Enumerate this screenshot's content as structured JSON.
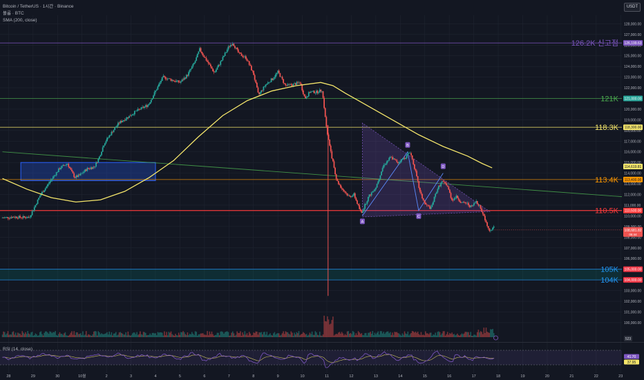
{
  "legend": {
    "pair": "Bitcoin / TetherUS · 1시간 · Binance",
    "volume": "볼륨 · BTC",
    "sma": "SMA (200, close)"
  },
  "currency_button": "USDT",
  "rsi_title": "RSI (14, close)",
  "colors": {
    "background": "#131722",
    "candle_up": "#26a69a",
    "candle_down": "#ef5350",
    "sma": "#f5e66b",
    "trend": "#4caf50",
    "pattern": "#7e57c2"
  },
  "chart_data": {
    "type": "candlestick",
    "title": "",
    "y_axis": {
      "range": [
        99800,
        128800
      ],
      "ticks": [
        "128,000.00",
        "127,000.00",
        "126,000.00",
        "125,000.00",
        "124,000.00",
        "123,000.00",
        "122,000.00",
        "121,000.00",
        "120,000.00",
        "119,000.00",
        "118,000.00",
        "117,000.00",
        "116,000.00",
        "115,000.00",
        "114,000.00",
        "113,000.00",
        "112,000.00",
        "111,000.00",
        "110,000.00",
        "109,000.00",
        "108,000.00",
        "107,000.00",
        "106,000.00",
        "105,000.00",
        "104,000.00",
        "103,000.00",
        "102,000.00",
        "101,000.00",
        "100,000.00"
      ],
      "tick_values": [
        128000,
        127000,
        126000,
        125000,
        124000,
        123000,
        122000,
        121000,
        120000,
        119000,
        118000,
        117000,
        116000,
        115000,
        114000,
        113000,
        112000,
        111000,
        110000,
        109000,
        108000,
        107000,
        106000,
        105000,
        104000,
        103000,
        102000,
        101000,
        100000
      ]
    },
    "x_axis": {
      "range": [
        -0.1,
        25.3
      ],
      "ticks": [
        {
          "label": "28",
          "pos": 0.25
        },
        {
          "label": "29",
          "pos": 1.25
        },
        {
          "label": "30",
          "pos": 2.25
        },
        {
          "label": "10월",
          "pos": 3.25
        },
        {
          "label": "2",
          "pos": 4.25
        },
        {
          "label": "3",
          "pos": 5.25
        },
        {
          "label": "4",
          "pos": 6.25
        },
        {
          "label": "5",
          "pos": 7.25
        },
        {
          "label": "6",
          "pos": 8.25
        },
        {
          "label": "7",
          "pos": 9.25
        },
        {
          "label": "8",
          "pos": 10.25
        },
        {
          "label": "9",
          "pos": 11.25
        },
        {
          "label": "10",
          "pos": 12.25
        },
        {
          "label": "11",
          "pos": 13.25
        },
        {
          "label": "12",
          "pos": 14.25
        },
        {
          "label": "13",
          "pos": 15.25
        },
        {
          "label": "14",
          "pos": 16.25
        },
        {
          "label": "15",
          "pos": 17.25
        },
        {
          "label": "16",
          "pos": 18.25
        },
        {
          "label": "17",
          "pos": 19.25
        },
        {
          "label": "18",
          "pos": 20.25
        },
        {
          "label": "19",
          "pos": 21.25
        },
        {
          "label": "20",
          "pos": 22.25
        },
        {
          "label": "21",
          "pos": 23.25
        },
        {
          "label": "22",
          "pos": 24.25
        },
        {
          "label": "23",
          "pos": 25.25
        }
      ]
    },
    "price_path": [
      [
        0.0,
        109800
      ],
      [
        0.5,
        109900
      ],
      [
        1.0,
        109850
      ],
      [
        1.15,
        109900
      ],
      [
        1.35,
        110800
      ],
      [
        1.6,
        112000
      ],
      [
        1.8,
        112600
      ],
      [
        2.1,
        113600
      ],
      [
        2.4,
        114500
      ],
      [
        2.7,
        114900
      ],
      [
        2.85,
        114200
      ],
      [
        3.0,
        113600
      ],
      [
        3.2,
        113800
      ],
      [
        3.5,
        114400
      ],
      [
        3.8,
        114600
      ],
      [
        4.0,
        115500
      ],
      [
        4.2,
        116800
      ],
      [
        4.5,
        117800
      ],
      [
        4.8,
        118700
      ],
      [
        5.2,
        119300
      ],
      [
        5.5,
        119800
      ],
      [
        6.0,
        120400
      ],
      [
        6.3,
        121700
      ],
      [
        6.6,
        123000
      ],
      [
        7.0,
        122700
      ],
      [
        7.3,
        122500
      ],
      [
        7.6,
        123200
      ],
      [
        7.9,
        124400
      ],
      [
        8.1,
        125600
      ],
      [
        8.4,
        124500
      ],
      [
        8.7,
        123400
      ],
      [
        9.0,
        124600
      ],
      [
        9.3,
        125900
      ],
      [
        9.45,
        126200
      ],
      [
        9.7,
        125200
      ],
      [
        10.0,
        124800
      ],
      [
        10.3,
        123300
      ],
      [
        10.5,
        121300
      ],
      [
        10.8,
        122300
      ],
      [
        11.1,
        122900
      ],
      [
        11.3,
        123500
      ],
      [
        11.6,
        122200
      ],
      [
        11.9,
        122300
      ],
      [
        12.2,
        122500
      ],
      [
        12.4,
        121000
      ],
      [
        12.6,
        121600
      ],
      [
        12.9,
        121600
      ],
      [
        13.1,
        121800
      ],
      [
        13.3,
        118000
      ],
      [
        13.5,
        115500
      ],
      [
        13.7,
        113300
      ],
      [
        13.9,
        112600
      ],
      [
        14.2,
        111800
      ],
      [
        14.4,
        112000
      ],
      [
        14.7,
        110200
      ],
      [
        15.0,
        111800
      ],
      [
        15.3,
        112700
      ],
      [
        15.6,
        114700
      ],
      [
        15.9,
        115500
      ],
      [
        16.2,
        115000
      ],
      [
        16.5,
        115500
      ],
      [
        16.7,
        116000
      ],
      [
        16.9,
        114300
      ],
      [
        17.1,
        112200
      ],
      [
        17.3,
        111100
      ],
      [
        17.55,
        110700
      ],
      [
        17.8,
        112500
      ],
      [
        18.0,
        113200
      ],
      [
        18.2,
        112900
      ],
      [
        18.4,
        111500
      ],
      [
        18.6,
        111800
      ],
      [
        18.8,
        111200
      ],
      [
        19.0,
        111200
      ],
      [
        19.2,
        110800
      ],
      [
        19.4,
        111400
      ],
      [
        19.6,
        110600
      ],
      [
        19.75,
        109700
      ],
      [
        19.95,
        108600
      ],
      [
        20.1,
        108900
      ]
    ],
    "wicks": [
      {
        "x": 13.3,
        "low": 102500,
        "high": 118500
      }
    ],
    "sma_200": [
      [
        0.0,
        113500
      ],
      [
        1.0,
        112500
      ],
      [
        2.0,
        111700
      ],
      [
        3.0,
        111300
      ],
      [
        4.0,
        111500
      ],
      [
        5.0,
        112300
      ],
      [
        6.0,
        113600
      ],
      [
        7.0,
        115200
      ],
      [
        8.0,
        117400
      ],
      [
        9.0,
        119400
      ],
      [
        10.0,
        120800
      ],
      [
        11.0,
        121700
      ],
      [
        12.0,
        122200
      ],
      [
        13.0,
        122500
      ],
      [
        13.5,
        122200
      ],
      [
        14.0,
        121500
      ],
      [
        15.0,
        120200
      ],
      [
        16.0,
        118900
      ],
      [
        17.0,
        117600
      ],
      [
        18.0,
        116500
      ],
      [
        19.0,
        115600
      ],
      [
        19.6,
        114900
      ],
      [
        20.0,
        114500
      ]
    ],
    "levels": [
      {
        "value": 126200,
        "label": "126.2K 신고점",
        "price_tag": "126,199.63",
        "color": "#7e57c2",
        "tag_color": "#7e57c2"
      },
      {
        "value": 121000,
        "label": "121K",
        "price_tag": "121,000.00",
        "color": "#4caf50",
        "tag_color": "#26a69a"
      },
      {
        "value": 118300,
        "label": "118.3K",
        "price_tag": "118,300.00",
        "color": "#f5e66b",
        "tag_color": "#f5e66b"
      },
      {
        "value": 113400,
        "label": "113.4K",
        "price_tag": "113,400.00",
        "color": "#ff9800",
        "tag_color": "#ff9800"
      },
      {
        "value": 110500,
        "label": "110.5K",
        "price_tag": "110,500.00",
        "color": "#ff3b3b",
        "tag_color": "#ff3b3b"
      },
      {
        "value": 105000,
        "label": "105K",
        "price_tag": "105,000.00",
        "color": "#2196f3",
        "tag_color": "#f23645"
      },
      {
        "value": 104000,
        "label": "104K",
        "price_tag": "104,000.00",
        "color": "#2196f3",
        "tag_color": "#f23645"
      }
    ],
    "extra_price_tags": [
      {
        "value": 114619.81,
        "text": "114,619.81",
        "color": "#f5e66b"
      },
      {
        "value": 108681.82,
        "text": "108,681.82",
        "sub": "05:44",
        "color": "#ef5350"
      }
    ],
    "trendline": {
      "from": [
        0.0,
        116000
      ],
      "to": [
        25.3,
        111800
      ]
    },
    "support_zone": {
      "x": [
        0.75,
        6.25
      ],
      "y": [
        113300,
        115000
      ]
    },
    "lower_zone": {
      "y": [
        104000,
        105000
      ]
    },
    "pattern_points": [
      {
        "label": "A",
        "x": 14.7,
        "y": 110000
      },
      {
        "label": "B",
        "x": 16.55,
        "y": 116000
      },
      {
        "label": "C",
        "x": 17.0,
        "y": 110500
      },
      {
        "label": "D",
        "x": 18.0,
        "y": 114000
      }
    ],
    "triangle": [
      [
        14.7,
        118700
      ],
      [
        14.7,
        109900
      ],
      [
        19.9,
        110400
      ]
    ],
    "volume_badge": "523",
    "rsi": {
      "badge_values": [
        "41.70",
        "37.95"
      ],
      "top_level": 70,
      "bottom_level": 30
    }
  }
}
